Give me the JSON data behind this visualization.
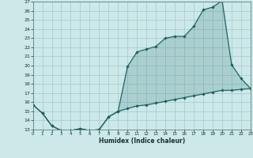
{
  "xlabel": "Humidex (Indice chaleur)",
  "background_color": "#cce8e8",
  "grid_color": "#aacece",
  "line_color": "#1a6060",
  "x_upper_line": [
    0,
    1,
    2,
    3,
    4,
    5,
    6,
    7,
    8,
    9,
    10,
    11,
    12,
    13,
    14,
    15,
    16,
    17,
    18,
    19,
    20,
    21,
    22,
    23
  ],
  "y_upper_line": [
    15.7,
    14.8,
    13.4,
    12.9,
    12.9,
    13.1,
    12.9,
    13.0,
    14.4,
    15.0,
    19.9,
    21.5,
    21.8,
    22.1,
    23.0,
    23.2,
    23.2,
    24.3,
    26.1,
    26.4,
    27.1,
    20.1,
    18.6,
    17.5
  ],
  "x_lower_line": [
    0,
    1,
    2,
    3,
    4,
    5,
    6,
    7,
    8,
    9,
    10,
    11,
    12,
    13,
    14,
    15,
    16,
    17,
    18,
    19,
    20,
    21,
    22,
    23
  ],
  "y_lower_line": [
    15.7,
    14.8,
    13.4,
    12.9,
    12.9,
    13.1,
    12.9,
    13.0,
    14.4,
    15.0,
    15.3,
    15.6,
    15.7,
    15.9,
    16.1,
    16.3,
    16.5,
    16.7,
    16.9,
    17.1,
    17.3,
    17.3,
    17.4,
    17.5
  ],
  "ylim": [
    13,
    27
  ],
  "xlim": [
    0,
    23
  ],
  "yticks": [
    13,
    14,
    15,
    16,
    17,
    18,
    19,
    20,
    21,
    22,
    23,
    24,
    25,
    26,
    27
  ],
  "xticks": [
    0,
    1,
    2,
    3,
    4,
    5,
    6,
    7,
    8,
    9,
    10,
    11,
    12,
    13,
    14,
    15,
    16,
    17,
    18,
    19,
    20,
    21,
    22,
    23
  ]
}
